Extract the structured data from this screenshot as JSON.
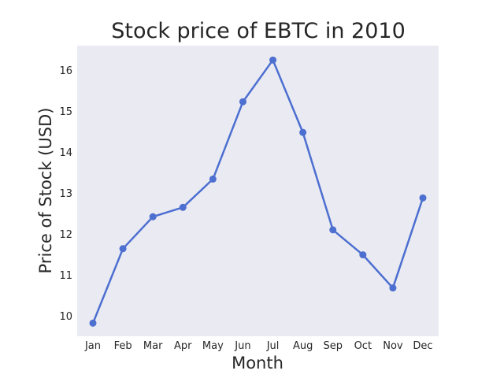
{
  "chart_data": {
    "type": "line",
    "title": "Stock price of EBTC in 2010",
    "xlabel": "Month",
    "ylabel": "Price of Stock (USD)",
    "categories": [
      "Jan",
      "Feb",
      "Mar",
      "Apr",
      "May",
      "Jun",
      "Jul",
      "Aug",
      "Sep",
      "Oct",
      "Nov",
      "Dec"
    ],
    "series": [
      {
        "values": [
          9.82,
          11.64,
          12.42,
          12.65,
          13.34,
          15.23,
          16.25,
          14.48,
          12.1,
          11.49,
          10.68,
          12.88
        ],
        "color": "#4c6fd0"
      }
    ],
    "ylim": [
      9.5,
      16.6
    ],
    "yticks": [
      10,
      11,
      12,
      13,
      14,
      15,
      16
    ],
    "grid": false,
    "legend": "none",
    "background": "#eaeaf2"
  }
}
